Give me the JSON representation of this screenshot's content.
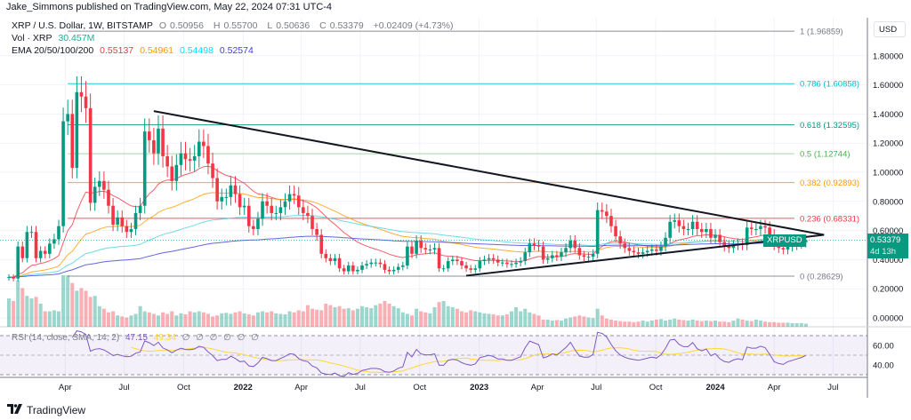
{
  "header": {
    "published": "Jake_Simmons published on TradingView.com, May 22, 2024 07:31 UTC-4"
  },
  "legend": {
    "symbol": "XRP / U.S. Dollar, 1W, BITSTAMP",
    "o_label": "O",
    "o": "0.50956",
    "h_label": "H",
    "h": "0.55700",
    "l_label": "L",
    "l": "0.50636",
    "c_label": "C",
    "c": "0.53379",
    "change": "+0.02409 (+4.73%)",
    "vol_label": "Vol · XRP",
    "vol": "30.457M",
    "ema_label": "EMA 20/50/100/200",
    "ema_values": [
      "0.55137",
      "0.54961",
      "0.54498",
      "0.52574"
    ],
    "rsi_label": "RSI (14, close, SMA, 14, 2)",
    "rsi_value": "47.15",
    "rsi_sma_value": "49.34",
    "rsi_empty": [
      "∅",
      "∅",
      "∅",
      "∅",
      "∅",
      "∅"
    ]
  },
  "price_tag": {
    "symbol": "XRPUSD",
    "price": "0.53379",
    "countdown": "4d 13h"
  },
  "footer": {
    "brand": "TradingView",
    "logo_icon": "tradingview-logo-icon"
  },
  "colors": {
    "up": "#089981",
    "down": "#f23645",
    "ema20": "#f23645",
    "ema50": "#ff9800",
    "ema100": "#4dd0e1",
    "ema200": "#3f3fd9",
    "rsi": "#7e57c2",
    "rsi_sma": "#fdd835"
  },
  "chart_data": {
    "type": "candlestick",
    "interval": "1W",
    "first_week": "2021-01-04",
    "y_unit": "USD",
    "y_ticks": [
      "0.00000",
      "0.20000",
      "0.40000",
      "0.60000",
      "0.80000",
      "1.00000",
      "1.20000",
      "1.40000",
      "1.60000",
      "1.80000"
    ],
    "ylim": [
      -0.03,
      2.05
    ],
    "x_ticks": [
      {
        "label": "Apr",
        "date": "2021-04-01"
      },
      {
        "label": "Jul",
        "date": "2021-07-01"
      },
      {
        "label": "Oct",
        "date": "2021-10-01"
      },
      {
        "label": "2022",
        "date": "2022-01-01"
      },
      {
        "label": "Apr",
        "date": "2022-04-01"
      },
      {
        "label": "Jul",
        "date": "2022-07-01"
      },
      {
        "label": "Oct",
        "date": "2022-10-01"
      },
      {
        "label": "2023",
        "date": "2023-01-01"
      },
      {
        "label": "Apr",
        "date": "2023-04-01"
      },
      {
        "label": "Jul",
        "date": "2023-07-01"
      },
      {
        "label": "Oct",
        "date": "2023-10-01"
      },
      {
        "label": "2024",
        "date": "2024-01-01"
      },
      {
        "label": "Apr",
        "date": "2024-04-01"
      },
      {
        "label": "Jul",
        "date": "2024-07-01"
      }
    ],
    "close": [
      0.28,
      0.27,
      0.49,
      0.41,
      0.59,
      0.59,
      0.41,
      0.46,
      0.44,
      0.51,
      0.54,
      0.63,
      1.35,
      1.4,
      1.03,
      1.55,
      1.52,
      1.44,
      0.79,
      0.9,
      0.94,
      0.88,
      0.77,
      0.64,
      0.69,
      0.63,
      0.59,
      0.61,
      0.72,
      0.77,
      1.28,
      1.22,
      1.13,
      1.3,
      1.11,
      1.04,
      0.94,
      1.05,
      1.13,
      1.09,
      1.08,
      1.11,
      1.21,
      1.18,
      1.06,
      0.96,
      0.8,
      0.83,
      0.83,
      0.91,
      0.85,
      0.76,
      0.77,
      0.63,
      0.61,
      0.68,
      0.8,
      0.77,
      0.72,
      0.72,
      0.76,
      0.8,
      0.85,
      0.84,
      0.76,
      0.72,
      0.7,
      0.61,
      0.57,
      0.44,
      0.41,
      0.39,
      0.41,
      0.34,
      0.32,
      0.36,
      0.32,
      0.33,
      0.36,
      0.37,
      0.38,
      0.38,
      0.37,
      0.33,
      0.32,
      0.33,
      0.35,
      0.36,
      0.49,
      0.44,
      0.53,
      0.48,
      0.47,
      0.47,
      0.48,
      0.34,
      0.34,
      0.39,
      0.4,
      0.39,
      0.36,
      0.34,
      0.33,
      0.34,
      0.39,
      0.4,
      0.41,
      0.4,
      0.38,
      0.38,
      0.37,
      0.37,
      0.38,
      0.39,
      0.45,
      0.51,
      0.5,
      0.49,
      0.4,
      0.41,
      0.43,
      0.42,
      0.45,
      0.48,
      0.53,
      0.48,
      0.43,
      0.42,
      0.42,
      0.44,
      0.74,
      0.73,
      0.7,
      0.63,
      0.56,
      0.51,
      0.48,
      0.46,
      0.45,
      0.44,
      0.45,
      0.46,
      0.47,
      0.46,
      0.49,
      0.55,
      0.66,
      0.67,
      0.63,
      0.61,
      0.61,
      0.66,
      0.61,
      0.59,
      0.61,
      0.55,
      0.57,
      0.52,
      0.49,
      0.48,
      0.5,
      0.51,
      0.5,
      0.62,
      0.61,
      0.61,
      0.63,
      0.62,
      0.57,
      0.5,
      0.48,
      0.47,
      0.49,
      0.5,
      0.51,
      0.52,
      0.53379
    ],
    "volume_relative": [
      55,
      50,
      90,
      75,
      60,
      55,
      58,
      45,
      30,
      30,
      32,
      30,
      100,
      100,
      85,
      70,
      75,
      70,
      58,
      60,
      40,
      35,
      28,
      30,
      22,
      20,
      18,
      22,
      25,
      40,
      30,
      28,
      25,
      22,
      28,
      25,
      30,
      22,
      26,
      24,
      30,
      28,
      30,
      28,
      25,
      20,
      22,
      26,
      27,
      25,
      28,
      30,
      26,
      24,
      22,
      28,
      30,
      28,
      30,
      26,
      25,
      24,
      30,
      28,
      32,
      30,
      42,
      35,
      33,
      32,
      45,
      42,
      38,
      40,
      35,
      36,
      32,
      35,
      40,
      38,
      36,
      42,
      45,
      50,
      45,
      40,
      36,
      28,
      25,
      22,
      35,
      30,
      28,
      26,
      38,
      48,
      50,
      40,
      38,
      35,
      30,
      28,
      32,
      30,
      28,
      26,
      25,
      24,
      22,
      22,
      24,
      30,
      38,
      30,
      35,
      28,
      25,
      22,
      14,
      14,
      12,
      13,
      12,
      16,
      18,
      20,
      22,
      20,
      18,
      17,
      35,
      22,
      16,
      14,
      12,
      11,
      10,
      10,
      9,
      10,
      12,
      10,
      12,
      14,
      15,
      12,
      14,
      16,
      14,
      13,
      12,
      14,
      12,
      11,
      12,
      11,
      12,
      10,
      10,
      9,
      12,
      16,
      14,
      12,
      11,
      14,
      12,
      10,
      9,
      9,
      8,
      8,
      8,
      7,
      7,
      7,
      6
    ],
    "ema_periods": [
      20,
      50,
      100,
      200
    ],
    "fib_retracement": [
      {
        "level": "1",
        "price": 1.96859,
        "label": "1 (1.96859)",
        "color": "#787b86"
      },
      {
        "level": "0.786",
        "price": 1.60858,
        "label": "0.786 (1.60858)",
        "color": "#00bcd4"
      },
      {
        "level": "0.618",
        "price": 1.32595,
        "label": "0.618 (1.32595)",
        "color": "#089981"
      },
      {
        "level": "0.5",
        "price": 1.12744,
        "label": "0.5 (1.12744)",
        "color": "#4caf50"
      },
      {
        "level": "0.382",
        "price": 0.92893,
        "label": "0.382 (0.92893)",
        "color": "#ff9800"
      },
      {
        "level": "0.236",
        "price": 0.68331,
        "label": "0.236 (0.68331)",
        "color": "#f23645"
      },
      {
        "level": "0",
        "price": 0.28629,
        "label": "0 (0.28629)",
        "color": "#787b86"
      }
    ],
    "trendlines": [
      {
        "from": {
          "date": "2021-08-16",
          "price": 1.42
        },
        "to": {
          "date": "2024-06-17",
          "price": 0.57
        }
      },
      {
        "from": {
          "date": "2022-12-12",
          "price": 0.29
        },
        "to": {
          "date": "2024-06-17",
          "price": 0.57
        }
      }
    ],
    "rsi": {
      "length": 14,
      "ma": "SMA",
      "ma_length": 14,
      "ticks": [
        "60.00",
        "40.00"
      ],
      "bands": [
        70,
        50,
        30
      ]
    }
  }
}
